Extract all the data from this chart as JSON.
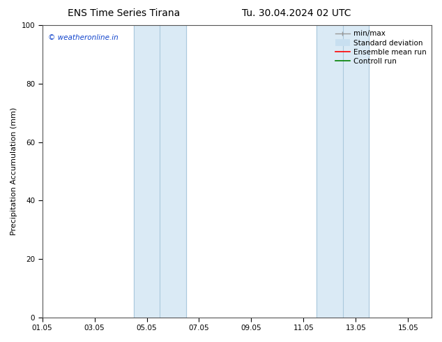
{
  "title_left": "ENS Time Series Tirana",
  "title_right": "Tu. 30.04.2024 02 UTC",
  "ylabel": "Precipitation Accumulation (mm)",
  "ylim": [
    0,
    100
  ],
  "yticks": [
    0,
    20,
    40,
    60,
    80,
    100
  ],
  "xtick_labels": [
    "01.05",
    "03.05",
    "05.05",
    "07.05",
    "09.05",
    "11.05",
    "13.05",
    "15.05"
  ],
  "xtick_positions": [
    0,
    2,
    4,
    6,
    8,
    10,
    12,
    14
  ],
  "xlim": [
    0,
    14.9
  ],
  "shaded_bands": [
    {
      "x_start": 3.5,
      "x_end": 4.5,
      "color": "#daeaf5"
    },
    {
      "x_start": 4.5,
      "x_end": 5.5,
      "color": "#daeaf5"
    },
    {
      "x_start": 10.5,
      "x_end": 11.5,
      "color": "#daeaf5"
    },
    {
      "x_start": 11.5,
      "x_end": 12.5,
      "color": "#daeaf5"
    }
  ],
  "band_dividers": [
    4.5,
    11.5
  ],
  "watermark_text": "© weatheronline.in",
  "watermark_color": "#1144cc",
  "bg_color": "#ffffff",
  "spine_color": "#555555",
  "title_fontsize": 10,
  "axis_label_fontsize": 8,
  "tick_fontsize": 7.5,
  "legend_fontsize": 7.5
}
